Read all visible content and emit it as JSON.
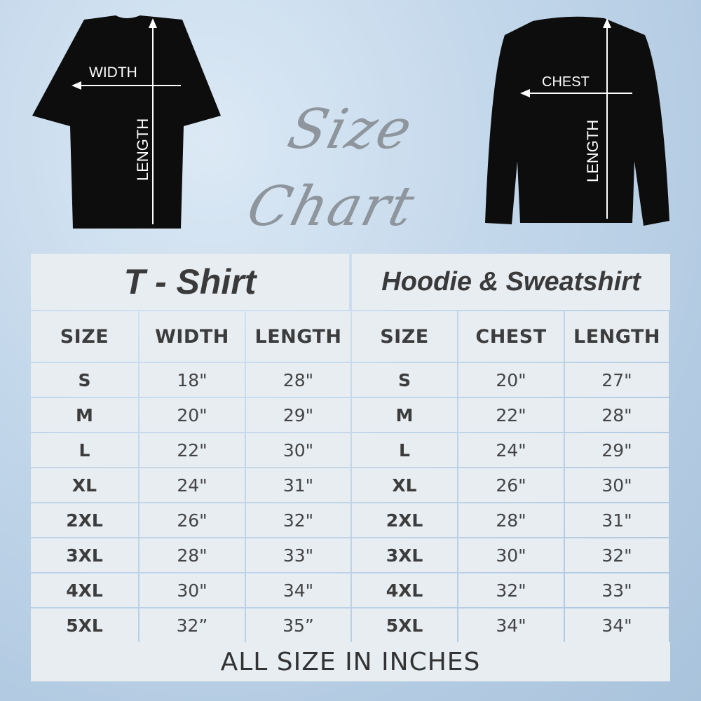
{
  "title": "Size Chart",
  "tshirt": {
    "title": "T - Shirt",
    "diagram": {
      "width_label": "WIDTH",
      "length_label": "LENGTH"
    },
    "headers": [
      "SIZE",
      "WIDTH",
      "LENGTH"
    ],
    "rows": [
      [
        "S",
        "18\"",
        "28\""
      ],
      [
        "M",
        "20\"",
        "29\""
      ],
      [
        "L",
        "22\"",
        "30\""
      ],
      [
        "XL",
        "24\"",
        "31\""
      ],
      [
        "2XL",
        "26\"",
        "32\""
      ],
      [
        "3XL",
        "28\"",
        "33\""
      ],
      [
        "4XL",
        "30\"",
        "34\""
      ],
      [
        "5XL",
        "32”",
        "35”"
      ]
    ]
  },
  "hoodie": {
    "title": "Hoodie & Sweatshirt",
    "diagram": {
      "chest_label": "CHEST",
      "length_label": "LENGTH"
    },
    "headers": [
      "SIZE",
      "CHEST",
      "LENGTH"
    ],
    "rows": [
      [
        "S",
        "20\"",
        "27\""
      ],
      [
        "M",
        "22\"",
        "28\""
      ],
      [
        "L",
        "24\"",
        "29\""
      ],
      [
        "XL",
        "26\"",
        "30\""
      ],
      [
        "2XL",
        "28\"",
        "31\""
      ],
      [
        "3XL",
        "30\"",
        "32\""
      ],
      [
        "4XL",
        "32\"",
        "33\""
      ],
      [
        "5XL",
        "34\"",
        "34\""
      ]
    ]
  },
  "footer": "ALL SIZE IN INCHES",
  "colors": {
    "cell": "#e8edf2",
    "grid": "#c9d6e3",
    "text": "#3c3c3c"
  }
}
